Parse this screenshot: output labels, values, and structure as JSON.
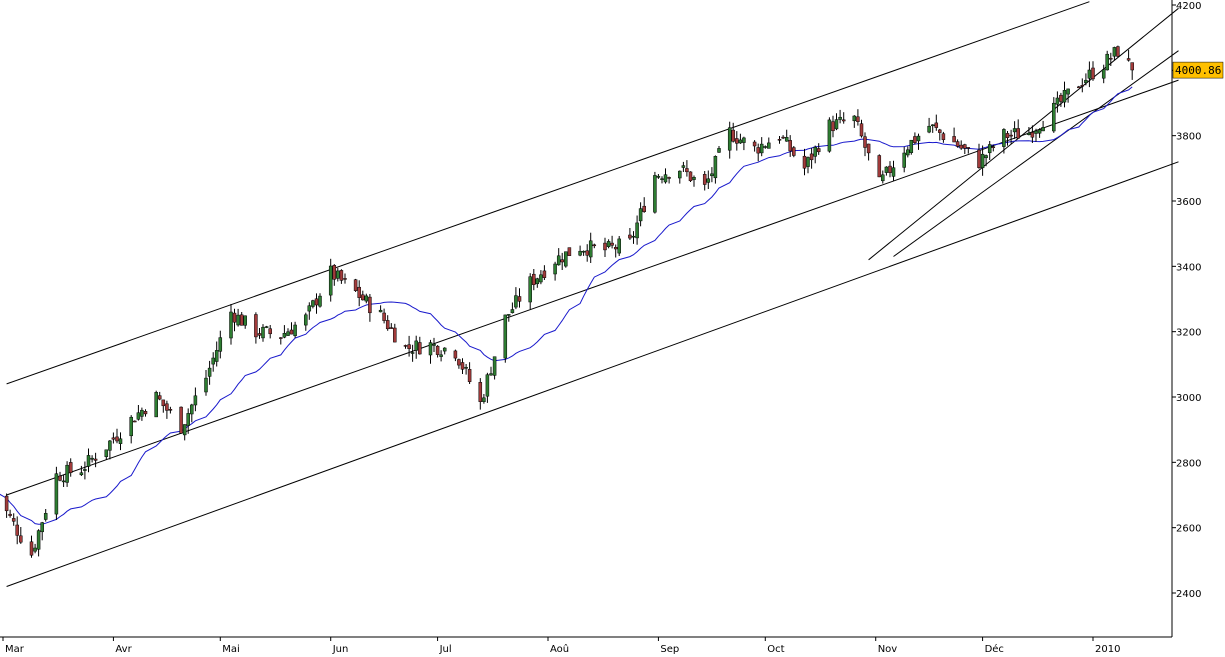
{
  "chart_data": {
    "type": "candlestick",
    "grid": false,
    "legend": "none",
    "ylim": [
      2300,
      4200
    ],
    "y_ticks": [
      "2400",
      "2600",
      "2800",
      "3000",
      "3200",
      "3400",
      "3600",
      "3800",
      "4000",
      "4200"
    ],
    "x_labels": [
      "Mar",
      "Avr",
      "Mai",
      "Jun",
      "Jul",
      "Aoû",
      "Sep",
      "Oct",
      "Nov",
      "Déc",
      "2010"
    ],
    "last_price": "4000.86",
    "colors": {
      "up_body": "#2e7d32",
      "down_body": "#a23b3b",
      "wick": "#000000",
      "moving_average": "#1a1acc",
      "trendline": "#000000",
      "price_tag": "#ffc000",
      "axis": "#000000"
    },
    "trendlines": [
      {
        "name": "upper-channel",
        "start": [
          "2009-03-02",
          3040
        ],
        "end": [
          "2009-12-31",
          4210
        ]
      },
      {
        "name": "middle-channel",
        "start": [
          "2009-03-02",
          2700
        ],
        "end": [
          "2010-01-25",
          3970
        ]
      },
      {
        "name": "lower-channel",
        "start": [
          "2009-03-02",
          2420
        ],
        "end": [
          "2010-01-25",
          3720
        ]
      },
      {
        "name": "steep-channel-upper",
        "start": [
          "2009-10-30",
          3420
        ],
        "end": [
          "2010-01-25",
          4190
        ]
      },
      {
        "name": "steep-channel-lower",
        "start": [
          "2009-11-06",
          3430
        ],
        "end": [
          "2010-01-25",
          4060
        ]
      }
    ]
  }
}
